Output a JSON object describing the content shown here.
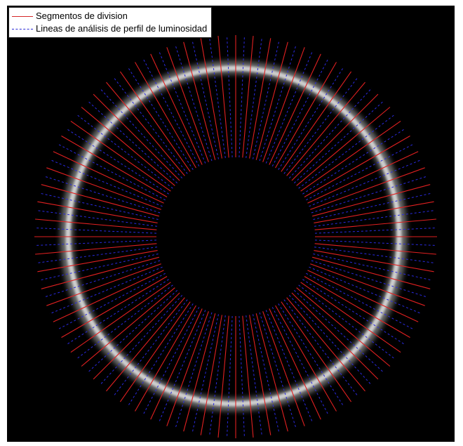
{
  "figure": {
    "background": "#000000",
    "ring_color": "#cfcfcf",
    "segment_color": "#e02020",
    "profile_line_color": "#2a2ae0",
    "segment_count": 72
  },
  "legend": {
    "items": [
      {
        "label": "Segmentos de division",
        "style": "solid",
        "color": "#d62728"
      },
      {
        "label": "Lineas de análisis de perfil de luminosidad",
        "style": "dashed",
        "color": "#2b2bd6"
      }
    ]
  }
}
